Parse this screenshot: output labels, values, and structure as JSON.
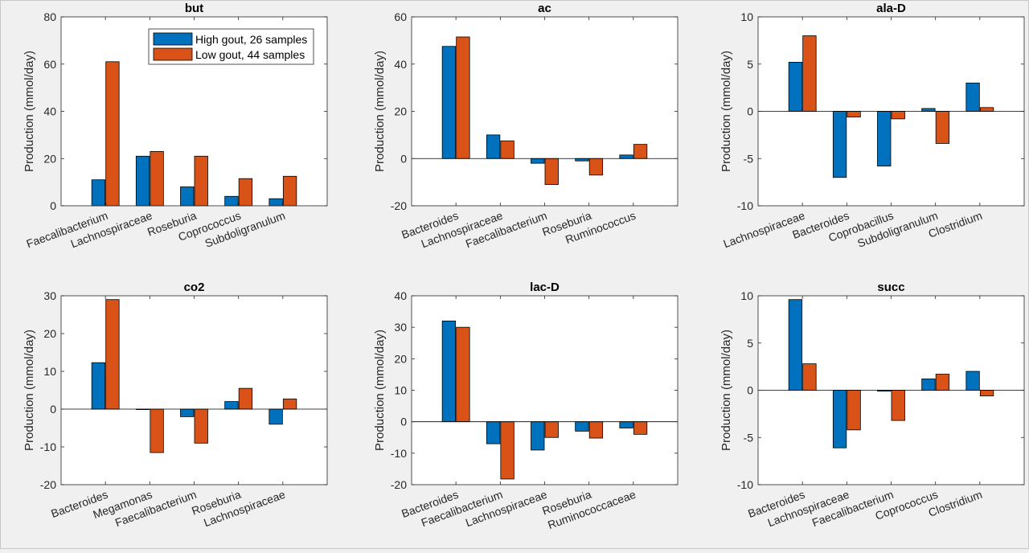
{
  "colors": {
    "high": "#0072BD",
    "low": "#D95319",
    "axes_bg": "#ffffff",
    "figure_bg": "#f0f0f0",
    "axis": "#262626"
  },
  "legend": {
    "entries": [
      "High gout, 26 samples",
      "Low gout, 44 samples"
    ],
    "location": "top-right of first panel"
  },
  "chart_data": [
    {
      "type": "bar",
      "title": "but",
      "ylabel": "Production (mmol/day)",
      "ylim": [
        0,
        80
      ],
      "yticks": [
        "0",
        "20",
        "40",
        "60",
        "80"
      ],
      "categories": [
        "Faecalibacterium",
        "Lachnospiraceae",
        "Roseburia",
        "Coprococcus",
        "Subdoligranulum"
      ],
      "series": [
        {
          "name": "High gout, 26 samples",
          "values": [
            11,
            21,
            8,
            4,
            3
          ]
        },
        {
          "name": "Low gout, 44 samples",
          "values": [
            61,
            23,
            21,
            11.5,
            12.5
          ]
        }
      ]
    },
    {
      "type": "bar",
      "title": "ac",
      "ylabel": "Production (mmol/day)",
      "ylim": [
        -20,
        60
      ],
      "yticks": [
        "-20",
        "0",
        "20",
        "40",
        "60"
      ],
      "categories": [
        "Bacteroides",
        "Lachnospiraceae",
        "Faecalibacterium",
        "Roseburia",
        "Ruminococcus"
      ],
      "series": [
        {
          "name": "High gout, 26 samples",
          "values": [
            47.5,
            10,
            -2,
            -1,
            1.5
          ]
        },
        {
          "name": "Low gout, 44 samples",
          "values": [
            51.5,
            7.5,
            -11,
            -7,
            6
          ]
        }
      ]
    },
    {
      "type": "bar",
      "title": "ala-D",
      "ylabel": "Production (mmol/day)",
      "ylim": [
        -10,
        10
      ],
      "yticks": [
        "-10",
        "-5",
        "0",
        "5",
        "10"
      ],
      "categories": [
        "Lachnospiraceae",
        "Bacteroides",
        "Coprobacillus",
        "Subdoligranulum",
        "Clostridium"
      ],
      "series": [
        {
          "name": "High gout, 26 samples",
          "values": [
            5.2,
            -7,
            -5.8,
            0.3,
            3
          ]
        },
        {
          "name": "Low gout, 44 samples",
          "values": [
            8,
            -0.6,
            -0.8,
            -3.4,
            0.4
          ]
        }
      ]
    },
    {
      "type": "bar",
      "title": "co2",
      "ylabel": "Production (mmol/day)",
      "ylim": [
        -20,
        30
      ],
      "yticks": [
        "-20",
        "-10",
        "0",
        "10",
        "20",
        "30"
      ],
      "categories": [
        "Bacteroides",
        "Megamonas",
        "Faecalibacterium",
        "Roseburia",
        "Lachnospiraceae"
      ],
      "series": [
        {
          "name": "High gout, 26 samples",
          "values": [
            12.3,
            0,
            -2,
            2,
            -4
          ]
        },
        {
          "name": "Low gout, 44 samples",
          "values": [
            29,
            -11.5,
            -9,
            5.5,
            2.7
          ]
        }
      ]
    },
    {
      "type": "bar",
      "title": "lac-D",
      "ylabel": "Production (mmol/day)",
      "ylim": [
        -20,
        40
      ],
      "yticks": [
        "-20",
        "-10",
        "0",
        "10",
        "20",
        "30",
        "40"
      ],
      "categories": [
        "Bacteroides",
        "Faecalibacterium",
        "Lachnospiraceae",
        "Roseburia",
        "Ruminococcaceae"
      ],
      "series": [
        {
          "name": "High gout, 26 samples",
          "values": [
            32,
            -7,
            -9,
            -3,
            -2
          ]
        },
        {
          "name": "Low gout, 44 samples",
          "values": [
            30,
            -18.2,
            -5,
            -5.2,
            -4
          ]
        }
      ]
    },
    {
      "type": "bar",
      "title": "succ",
      "ylabel": "Production (mmol/day)",
      "ylim": [
        -10,
        10
      ],
      "yticks": [
        "-10",
        "-5",
        "0",
        "5",
        "10"
      ],
      "categories": [
        "Bacteroides",
        "Lachnospiraceae",
        "Faecalibacterium",
        "Coprococcus",
        "Clostridium"
      ],
      "series": [
        {
          "name": "High gout, 26 samples",
          "values": [
            9.6,
            -6.1,
            -0.1,
            1.2,
            2
          ]
        },
        {
          "name": "Low gout, 44 samples",
          "values": [
            2.8,
            -4.2,
            -3.2,
            1.7,
            -0.6
          ]
        }
      ]
    }
  ]
}
